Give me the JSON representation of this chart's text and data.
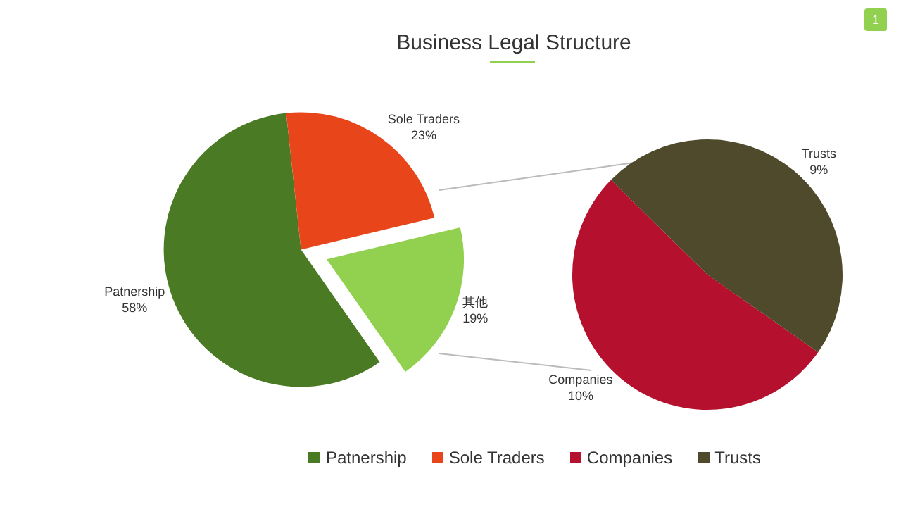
{
  "chart_data": [
    {
      "type": "pie",
      "title": "Business Legal Structure",
      "categories": [
        "Patnership",
        "Sole Traders",
        "其他"
      ],
      "values": [
        58,
        23,
        19
      ],
      "colors": [
        "#4a7a23",
        "#e8461a",
        "#92d050"
      ],
      "value_labels": [
        "58%",
        "23%",
        "19%"
      ],
      "legend": "bottom",
      "annotations": [
        "1"
      ]
    },
    {
      "type": "pie",
      "categories": [
        "Companies",
        "Trusts"
      ],
      "values": [
        10,
        9
      ],
      "colors": [
        "#b5112e",
        "#4e4a2b"
      ],
      "value_labels": [
        "10%",
        "9%"
      ],
      "legend": "bottom"
    }
  ]
}
